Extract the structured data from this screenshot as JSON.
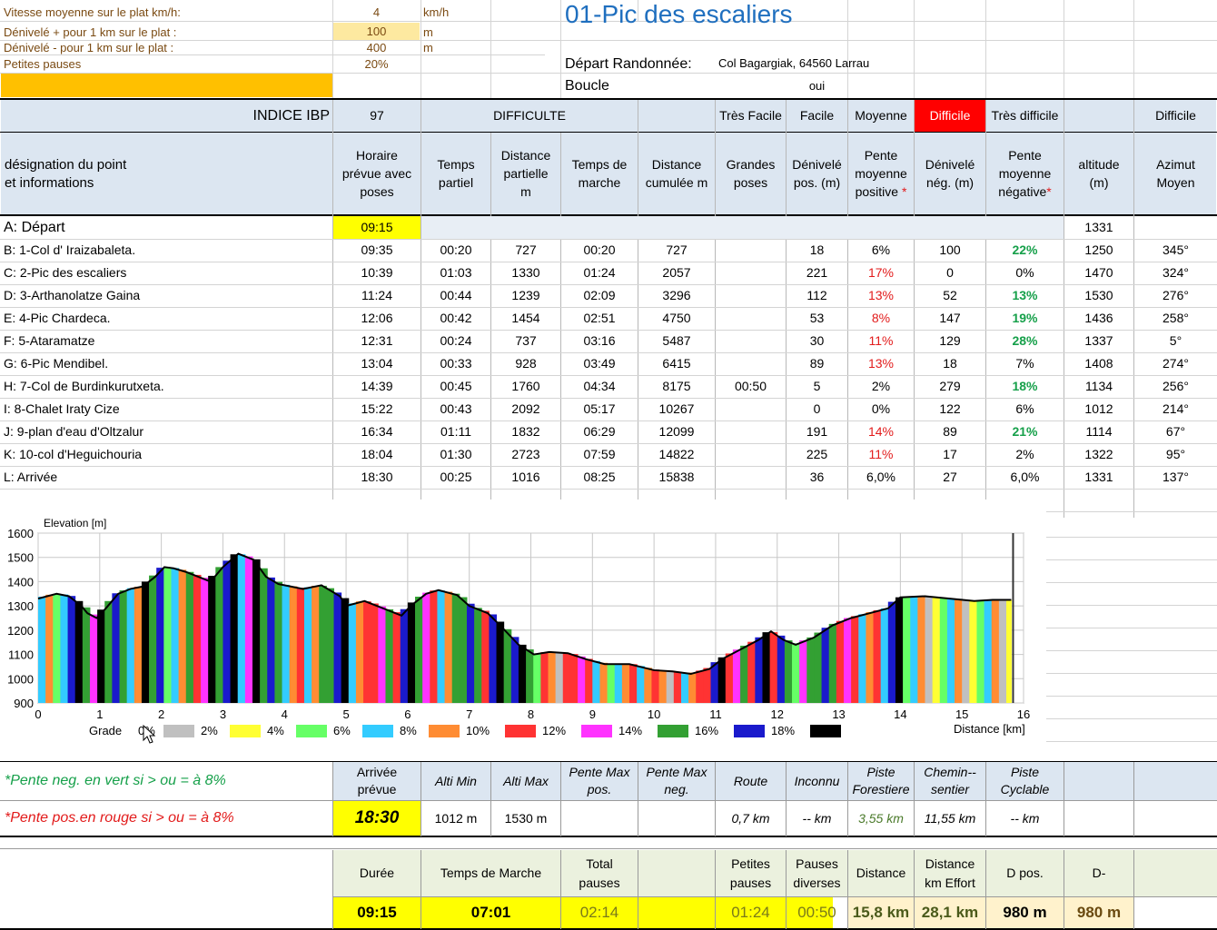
{
  "params": [
    {
      "label": "Vitesse moyenne sur le plat  km/h:",
      "value": "4",
      "unit": "km/h"
    },
    {
      "label": "Dénivelé + pour 1 km sur le plat :",
      "value": "100",
      "unit": "m"
    },
    {
      "label": "Dénivelé - pour 1 km sur le plat :",
      "value": "400",
      "unit": "m"
    },
    {
      "label": "Petites pauses",
      "value": "20%",
      "unit": ""
    }
  ],
  "title": "01-Pic des escaliers",
  "depart_label": "Départ Randonnée:",
  "depart_value": "Col Bagargiak, 64560 Larrau",
  "boucle_label": "Boucle",
  "boucle_value": "oui",
  "ibp": {
    "label": "INDICE IBP",
    "value": "97",
    "difficulte": "DIFFICULTE",
    "levels": [
      "Très Facile",
      "Facile",
      "Moyenne",
      "Difficile",
      "Très difficile"
    ],
    "result": "Difficile"
  },
  "headers": {
    "designation": [
      "désignation du point",
      "et informations"
    ],
    "horaire": "Horaire prévue  avec poses",
    "temps_partiel": "Temps partiel",
    "dist_partielle": "Distance partielle m",
    "temps_marche": "Temps de marche",
    "dist_cumulee": "Distance cumulée m",
    "grandes_poses": "Grandes poses",
    "den_pos": "Dénivelé pos. (m)",
    "pente_pos": "Pente moyenne positive",
    "den_neg": "Dénivelé nég. (m)",
    "pente_neg": "Pente moyenne négative",
    "altitude": "altitude (m)",
    "azimut": "Azimut Moyen",
    "star": "*"
  },
  "rows": [
    {
      "name": "A: Départ",
      "horaire": "09:15",
      "tp": "",
      "dp": "",
      "tm": "",
      "dc": "",
      "gp": "",
      "dpos": "",
      "ppos": "",
      "dneg": "",
      "pneg": "",
      "alt": "1331",
      "az": ""
    },
    {
      "name": "B: 1-Col d' Iraizabaleta.",
      "horaire": "09:35",
      "tp": "00:20",
      "dp": "727",
      "tm": "00:20",
      "dc": "727",
      "gp": "",
      "dpos": "18",
      "ppos": "6%",
      "dneg": "100",
      "pneg": "22%",
      "alt": "1250",
      "az": "345°"
    },
    {
      "name": "C: 2-Pic des escaliers",
      "horaire": "10:39",
      "tp": "01:03",
      "dp": "1330",
      "tm": "01:24",
      "dc": "2057",
      "gp": "",
      "dpos": "221",
      "ppos": "17%",
      "dneg": "0",
      "pneg": "0%",
      "alt": "1470",
      "az": "324°"
    },
    {
      "name": "D: 3-Arthanolatze Gaina",
      "horaire": "11:24",
      "tp": "00:44",
      "dp": "1239",
      "tm": "02:09",
      "dc": "3296",
      "gp": "",
      "dpos": "112",
      "ppos": "13%",
      "dneg": "52",
      "pneg": "13%",
      "alt": "1530",
      "az": "276°"
    },
    {
      "name": "E: 4-Pic Chardeca.",
      "horaire": "12:06",
      "tp": "00:42",
      "dp": "1454",
      "tm": "02:51",
      "dc": "4750",
      "gp": "",
      "dpos": "53",
      "ppos": "8%",
      "dneg": "147",
      "pneg": "19%",
      "alt": "1436",
      "az": "258°"
    },
    {
      "name": "F: 5-Ataramatze",
      "horaire": "12:31",
      "tp": "00:24",
      "dp": "737",
      "tm": "03:16",
      "dc": "5487",
      "gp": "",
      "dpos": "30",
      "ppos": "11%",
      "dneg": "129",
      "pneg": "28%",
      "alt": "1337",
      "az": "5°"
    },
    {
      "name": "G: 6-Pic Mendibel.",
      "horaire": "13:04",
      "tp": "00:33",
      "dp": "928",
      "tm": "03:49",
      "dc": "6415",
      "gp": "",
      "dpos": "89",
      "ppos": "13%",
      "dneg": "18",
      "pneg": "7%",
      "alt": "1408",
      "az": "274°"
    },
    {
      "name": "H: 7-Col de Burdinkurutxeta.",
      "horaire": "14:39",
      "tp": "00:45",
      "dp": "1760",
      "tm": "04:34",
      "dc": "8175",
      "gp": "00:50",
      "dpos": "5",
      "ppos": "2%",
      "dneg": "279",
      "pneg": "18%",
      "alt": "1134",
      "az": "256°"
    },
    {
      "name": "I: 8-Chalet Iraty Cize",
      "horaire": "15:22",
      "tp": "00:43",
      "dp": "2092",
      "tm": "05:17",
      "dc": "10267",
      "gp": "",
      "dpos": "0",
      "ppos": "0%",
      "dneg": "122",
      "pneg": "6%",
      "alt": "1012",
      "az": "214°"
    },
    {
      "name": "J: 9-plan d'eau d'Oltzalur",
      "horaire": "16:34",
      "tp": "01:11",
      "dp": "1832",
      "tm": "06:29",
      "dc": "12099",
      "gp": "",
      "dpos": "191",
      "ppos": "14%",
      "dneg": "89",
      "pneg": "21%",
      "alt": "1114",
      "az": "67°"
    },
    {
      "name": "K: 10-col d'Heguichouria",
      "horaire": "18:04",
      "tp": "01:30",
      "dp": "2723",
      "tm": "07:59",
      "dc": "14822",
      "gp": "",
      "dpos": "225",
      "ppos": "11%",
      "dneg": "17",
      "pneg": "2%",
      "alt": "1322",
      "az": "95°"
    },
    {
      "name": "L: Arrivée",
      "horaire": "18:30",
      "tp": "00:25",
      "dp": "1016",
      "tm": "08:25",
      "dc": "15838",
      "gp": "",
      "dpos": "36",
      "ppos": "6,0%",
      "dneg": "27",
      "pneg": "6,0%",
      "alt": "1331",
      "az": "137°"
    }
  ],
  "chart_data": {
    "type": "area",
    "ylabel": "Elevation [m]",
    "xlabel": "Distance [km]",
    "xlim": [
      0,
      16
    ],
    "ylim": [
      900,
      1600
    ],
    "x_ticks": [
      "0",
      "1",
      "2",
      "3",
      "4",
      "5",
      "6",
      "7",
      "8",
      "9",
      "10",
      "11",
      "12",
      "13",
      "14",
      "15",
      "16"
    ],
    "y_ticks": [
      "900",
      "1000",
      "1100",
      "1200",
      "1300",
      "1400",
      "1500",
      "1600"
    ],
    "grid": true,
    "profile": [
      [
        0,
        1330
      ],
      [
        0.3,
        1350
      ],
      [
        0.5,
        1340
      ],
      [
        0.7,
        1300
      ],
      [
        0.8,
        1270
      ],
      [
        0.95,
        1250
      ],
      [
        1.1,
        1290
      ],
      [
        1.3,
        1350
      ],
      [
        1.5,
        1370
      ],
      [
        1.7,
        1380
      ],
      [
        1.9,
        1420
      ],
      [
        2.05,
        1460
      ],
      [
        2.2,
        1455
      ],
      [
        2.4,
        1440
      ],
      [
        2.6,
        1420
      ],
      [
        2.8,
        1400
      ],
      [
        3.0,
        1460
      ],
      [
        3.25,
        1515
      ],
      [
        3.5,
        1490
      ],
      [
        3.7,
        1420
      ],
      [
        3.9,
        1390
      ],
      [
        4.1,
        1380
      ],
      [
        4.3,
        1370
      ],
      [
        4.6,
        1385
      ],
      [
        4.9,
        1340
      ],
      [
        5.0,
        1300
      ],
      [
        5.3,
        1320
      ],
      [
        5.6,
        1290
      ],
      [
        5.9,
        1260
      ],
      [
        6.05,
        1300
      ],
      [
        6.3,
        1350
      ],
      [
        6.5,
        1365
      ],
      [
        6.8,
        1345
      ],
      [
        7.0,
        1300
      ],
      [
        7.3,
        1270
      ],
      [
        7.5,
        1220
      ],
      [
        7.8,
        1140
      ],
      [
        8.05,
        1100
      ],
      [
        8.3,
        1110
      ],
      [
        8.6,
        1105
      ],
      [
        8.9,
        1080
      ],
      [
        9.2,
        1060
      ],
      [
        9.6,
        1060
      ],
      [
        10.0,
        1035
      ],
      [
        10.3,
        1030
      ],
      [
        10.6,
        1020
      ],
      [
        10.9,
        1040
      ],
      [
        11.1,
        1080
      ],
      [
        11.4,
        1120
      ],
      [
        11.7,
        1160
      ],
      [
        11.9,
        1195
      ],
      [
        12.1,
        1160
      ],
      [
        12.3,
        1140
      ],
      [
        12.6,
        1170
      ],
      [
        12.9,
        1220
      ],
      [
        13.2,
        1250
      ],
      [
        13.5,
        1270
      ],
      [
        13.8,
        1290
      ],
      [
        14.0,
        1335
      ],
      [
        14.4,
        1340
      ],
      [
        14.8,
        1330
      ],
      [
        15.2,
        1320
      ],
      [
        15.5,
        1325
      ],
      [
        15.8,
        1325
      ]
    ],
    "legend_title": "Grade",
    "legend": [
      {
        "label": "0%",
        "color": "#ffffff"
      },
      {
        "label": "2%",
        "color": "#c0c0c0"
      },
      {
        "label": "4%",
        "color": "#ffff33"
      },
      {
        "label": "6%",
        "color": "#66ff66"
      },
      {
        "label": "8%",
        "color": "#33ccff"
      },
      {
        "label": "10%",
        "color": "#ff8c33"
      },
      {
        "label": "12%",
        "color": "#ff3333"
      },
      {
        "label": "14%",
        "color": "#ff33ff"
      },
      {
        "label": "16%",
        "color": "#33a033"
      },
      {
        "label": "18%",
        "color": "#1a1acc"
      },
      {
        "label": "",
        "color": "#000000"
      }
    ]
  },
  "notes": {
    "neg": "*Pente neg. en vert si > ou = à 8%",
    "pos": "*Pente pos.en rouge si > ou = à 8%"
  },
  "summary1": {
    "headers": [
      "Arrivée prévue",
      "Alti Min",
      "Alti Max",
      "Pente Max pos.",
      "Pente Max neg.",
      "Route",
      "Inconnu",
      "Piste Forestiere",
      "Chemin--sentier",
      "Piste Cyclable"
    ],
    "values": [
      "18:30",
      "1012 m",
      "1530 m",
      "",
      "",
      "0,7 km",
      "-- km",
      "3,55 km",
      "11,55 km",
      "-- km"
    ]
  },
  "summary2": {
    "headers": [
      "Durée",
      "Temps de Marche",
      "Total pauses",
      "",
      "Petites pauses",
      "Pauses diverses",
      "Distance",
      "Distance km Effort",
      "D pos.",
      "D-"
    ],
    "values": [
      "09:15",
      "07:01",
      "02:14",
      "",
      "01:24",
      "00:50",
      "15,8 km",
      "28,1 km",
      "980 m",
      "980 m"
    ]
  },
  "colors": {
    "title": "#1f6fbf",
    "param_text": "#7a4a12",
    "orange": "#ffc000",
    "input_fill": "#fde9a0",
    "header_band": "#dce6f1",
    "difficile": "#ff0000"
  }
}
